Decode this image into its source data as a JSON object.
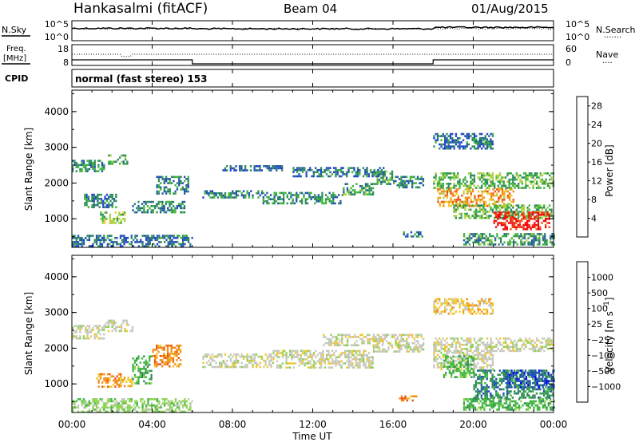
{
  "header": {
    "station": "Hankasalmi (fitACF)",
    "beam": "Beam 04",
    "date": "01/Aug/2015"
  },
  "noise_panel": {
    "left_label": "N.Sky",
    "right_label": "N.Search",
    "right_legend": "·······",
    "left_ticks": [
      "10^5",
      "10^0"
    ],
    "right_ticks": [
      "10^5",
      "10^0"
    ]
  },
  "freq_panel": {
    "left_label_1": "Freq.",
    "left_label_2": "[MHz]",
    "right_label": "Nave",
    "right_legend": "····",
    "left_ticks": [
      "18",
      "8"
    ],
    "right_ticks": [
      "60",
      "0"
    ]
  },
  "cpid_panel": {
    "label": "CPID",
    "mode": "normal (fast stereo) 153"
  },
  "colors": {
    "power_scale": [
      "#0000ff",
      "#1e3fd6",
      "#2255a8",
      "#2e8a5a",
      "#3cb43c",
      "#a8d040",
      "#f0c828",
      "#f08c14",
      "#f05014",
      "#e61414",
      "#ff0000"
    ],
    "velocity_scale": [
      "#0000ff",
      "#1e50b4",
      "#2e8a5a",
      "#3cb43c",
      "#8cd250",
      "#c8c8be",
      "#f0c828",
      "#f08c14",
      "#f05014",
      "#e61414",
      "#ff0000"
    ],
    "ground_scatter": "#c8c8be"
  },
  "chart_data": [
    {
      "type": "heatmap",
      "name": "power",
      "xlabel": "",
      "ylabel": "Slant Range [km]",
      "x_ticks": [
        "00:00",
        "04:00",
        "08:00",
        "12:00",
        "16:00",
        "20:00",
        "00:00"
      ],
      "y_ticks": [
        "1000",
        "2000",
        "3000",
        "4000"
      ],
      "ylim": [
        200,
        4600
      ],
      "colorbar": {
        "label": "Power [dB]",
        "ticks": [
          "4",
          "8",
          "12",
          "16",
          "20",
          "24",
          "28"
        ],
        "range": [
          0,
          30
        ]
      },
      "bands": [
        {
          "t": [
            0.0,
            1.6
          ],
          "r": [
            2350,
            2650
          ],
          "v": 9
        },
        {
          "t": [
            1.8,
            2.8
          ],
          "r": [
            2550,
            2800
          ],
          "v": 11
        },
        {
          "t": [
            0.6,
            2.2
          ],
          "r": [
            1350,
            1700
          ],
          "v": 8
        },
        {
          "t": [
            1.4,
            2.6
          ],
          "r": [
            900,
            1200
          ],
          "v": 14
        },
        {
          "t": [
            3.0,
            5.6
          ],
          "r": [
            1200,
            1500
          ],
          "v": 9
        },
        {
          "t": [
            4.2,
            5.8
          ],
          "r": [
            1700,
            2200
          ],
          "v": 8
        },
        {
          "t": [
            0.0,
            6.0
          ],
          "r": [
            250,
            550
          ],
          "v": 7
        },
        {
          "t": [
            6.5,
            9.5
          ],
          "r": [
            1600,
            1800
          ],
          "v": 8
        },
        {
          "t": [
            9.5,
            13.5
          ],
          "r": [
            1450,
            1750
          ],
          "v": 9
        },
        {
          "t": [
            13.5,
            15.0
          ],
          "r": [
            1700,
            2000
          ],
          "v": 10
        },
        {
          "t": [
            15.0,
            16.0
          ],
          "r": [
            1950,
            2350
          ],
          "v": 11
        },
        {
          "t": [
            16.0,
            17.5
          ],
          "r": [
            1900,
            2200
          ],
          "v": 9
        },
        {
          "t": [
            11.0,
            15.5
          ],
          "r": [
            2200,
            2450
          ],
          "v": 7
        },
        {
          "t": [
            7.5,
            10.5
          ],
          "r": [
            2350,
            2500
          ],
          "v": 6
        },
        {
          "t": [
            16.5,
            17.5
          ],
          "r": [
            500,
            650
          ],
          "v": 8
        },
        {
          "t": [
            18.0,
            24.0
          ],
          "r": [
            1850,
            2300
          ],
          "v": 12
        },
        {
          "t": [
            18.2,
            22.0
          ],
          "r": [
            1350,
            1850
          ],
          "v": 20
        },
        {
          "t": [
            19.0,
            24.0
          ],
          "r": [
            1000,
            1400
          ],
          "v": 12
        },
        {
          "t": [
            21.0,
            23.8
          ],
          "r": [
            700,
            1200
          ],
          "v": 28
        },
        {
          "t": [
            19.5,
            24.0
          ],
          "r": [
            300,
            600
          ],
          "v": 10
        },
        {
          "t": [
            18.0,
            21.0
          ],
          "r": [
            2950,
            3400
          ],
          "v": 7
        },
        {
          "t": [
            20.0,
            21.0
          ],
          "r": [
            3100,
            3250
          ],
          "v": 10
        }
      ]
    },
    {
      "type": "heatmap",
      "name": "velocity",
      "xlabel": "Time UT",
      "ylabel": "Slant Range [km]",
      "x_ticks": [
        "00:00",
        "04:00",
        "08:00",
        "12:00",
        "16:00",
        "20:00",
        "00:00"
      ],
      "y_ticks": [
        "1000",
        "2000",
        "3000",
        "4000"
      ],
      "ylim": [
        200,
        4600
      ],
      "colorbar": {
        "label": "Velocity [m s^-1]",
        "ticks": [
          "1000",
          "500",
          "100",
          "25",
          "−25",
          "−100",
          "−500",
          "−1000"
        ]
      },
      "bands": [
        {
          "t": [
            0.0,
            1.6
          ],
          "r": [
            2250,
            2650
          ],
          "v": 5
        },
        {
          "t": [
            1.6,
            3.0
          ],
          "r": [
            2500,
            2800
          ],
          "v": 5
        },
        {
          "t": [
            1.2,
            2.4
          ],
          "r": [
            900,
            1300
          ],
          "v": 7
        },
        {
          "t": [
            2.4,
            3.0
          ],
          "r": [
            950,
            1200
          ],
          "v": 6
        },
        {
          "t": [
            3.0,
            4.0
          ],
          "r": [
            1000,
            1800
          ],
          "v": 3
        },
        {
          "t": [
            4.0,
            5.4
          ],
          "r": [
            1500,
            2100
          ],
          "v": 7
        },
        {
          "t": [
            0.0,
            6.0
          ],
          "r": [
            250,
            600
          ],
          "v": 4
        },
        {
          "t": [
            6.5,
            10.0
          ],
          "r": [
            1500,
            1850
          ],
          "v": 5
        },
        {
          "t": [
            10.0,
            15.0
          ],
          "r": [
            1450,
            1950
          ],
          "v": 5
        },
        {
          "t": [
            12.5,
            15.5
          ],
          "r": [
            2100,
            2400
          ],
          "v": 5
        },
        {
          "t": [
            15.0,
            17.5
          ],
          "r": [
            1900,
            2400
          ],
          "v": 5
        },
        {
          "t": [
            16.3,
            17.2
          ],
          "r": [
            550,
            680
          ],
          "v": 7
        },
        {
          "t": [
            18.0,
            24.0
          ],
          "r": [
            1900,
            2300
          ],
          "v": 5
        },
        {
          "t": [
            18.0,
            21.0
          ],
          "r": [
            1400,
            1900
          ],
          "v": 5
        },
        {
          "t": [
            20.0,
            24.0
          ],
          "r": [
            600,
            1400
          ],
          "v": 2
        },
        {
          "t": [
            21.5,
            24.0
          ],
          "r": [
            900,
            1400
          ],
          "v": 1
        },
        {
          "t": [
            18.5,
            20.0
          ],
          "r": [
            1200,
            1800
          ],
          "v": 3
        },
        {
          "t": [
            18.0,
            21.0
          ],
          "r": [
            2950,
            3400
          ],
          "v": 6
        },
        {
          "t": [
            19.5,
            24.0
          ],
          "r": [
            300,
            600
          ],
          "v": 3
        }
      ]
    }
  ]
}
